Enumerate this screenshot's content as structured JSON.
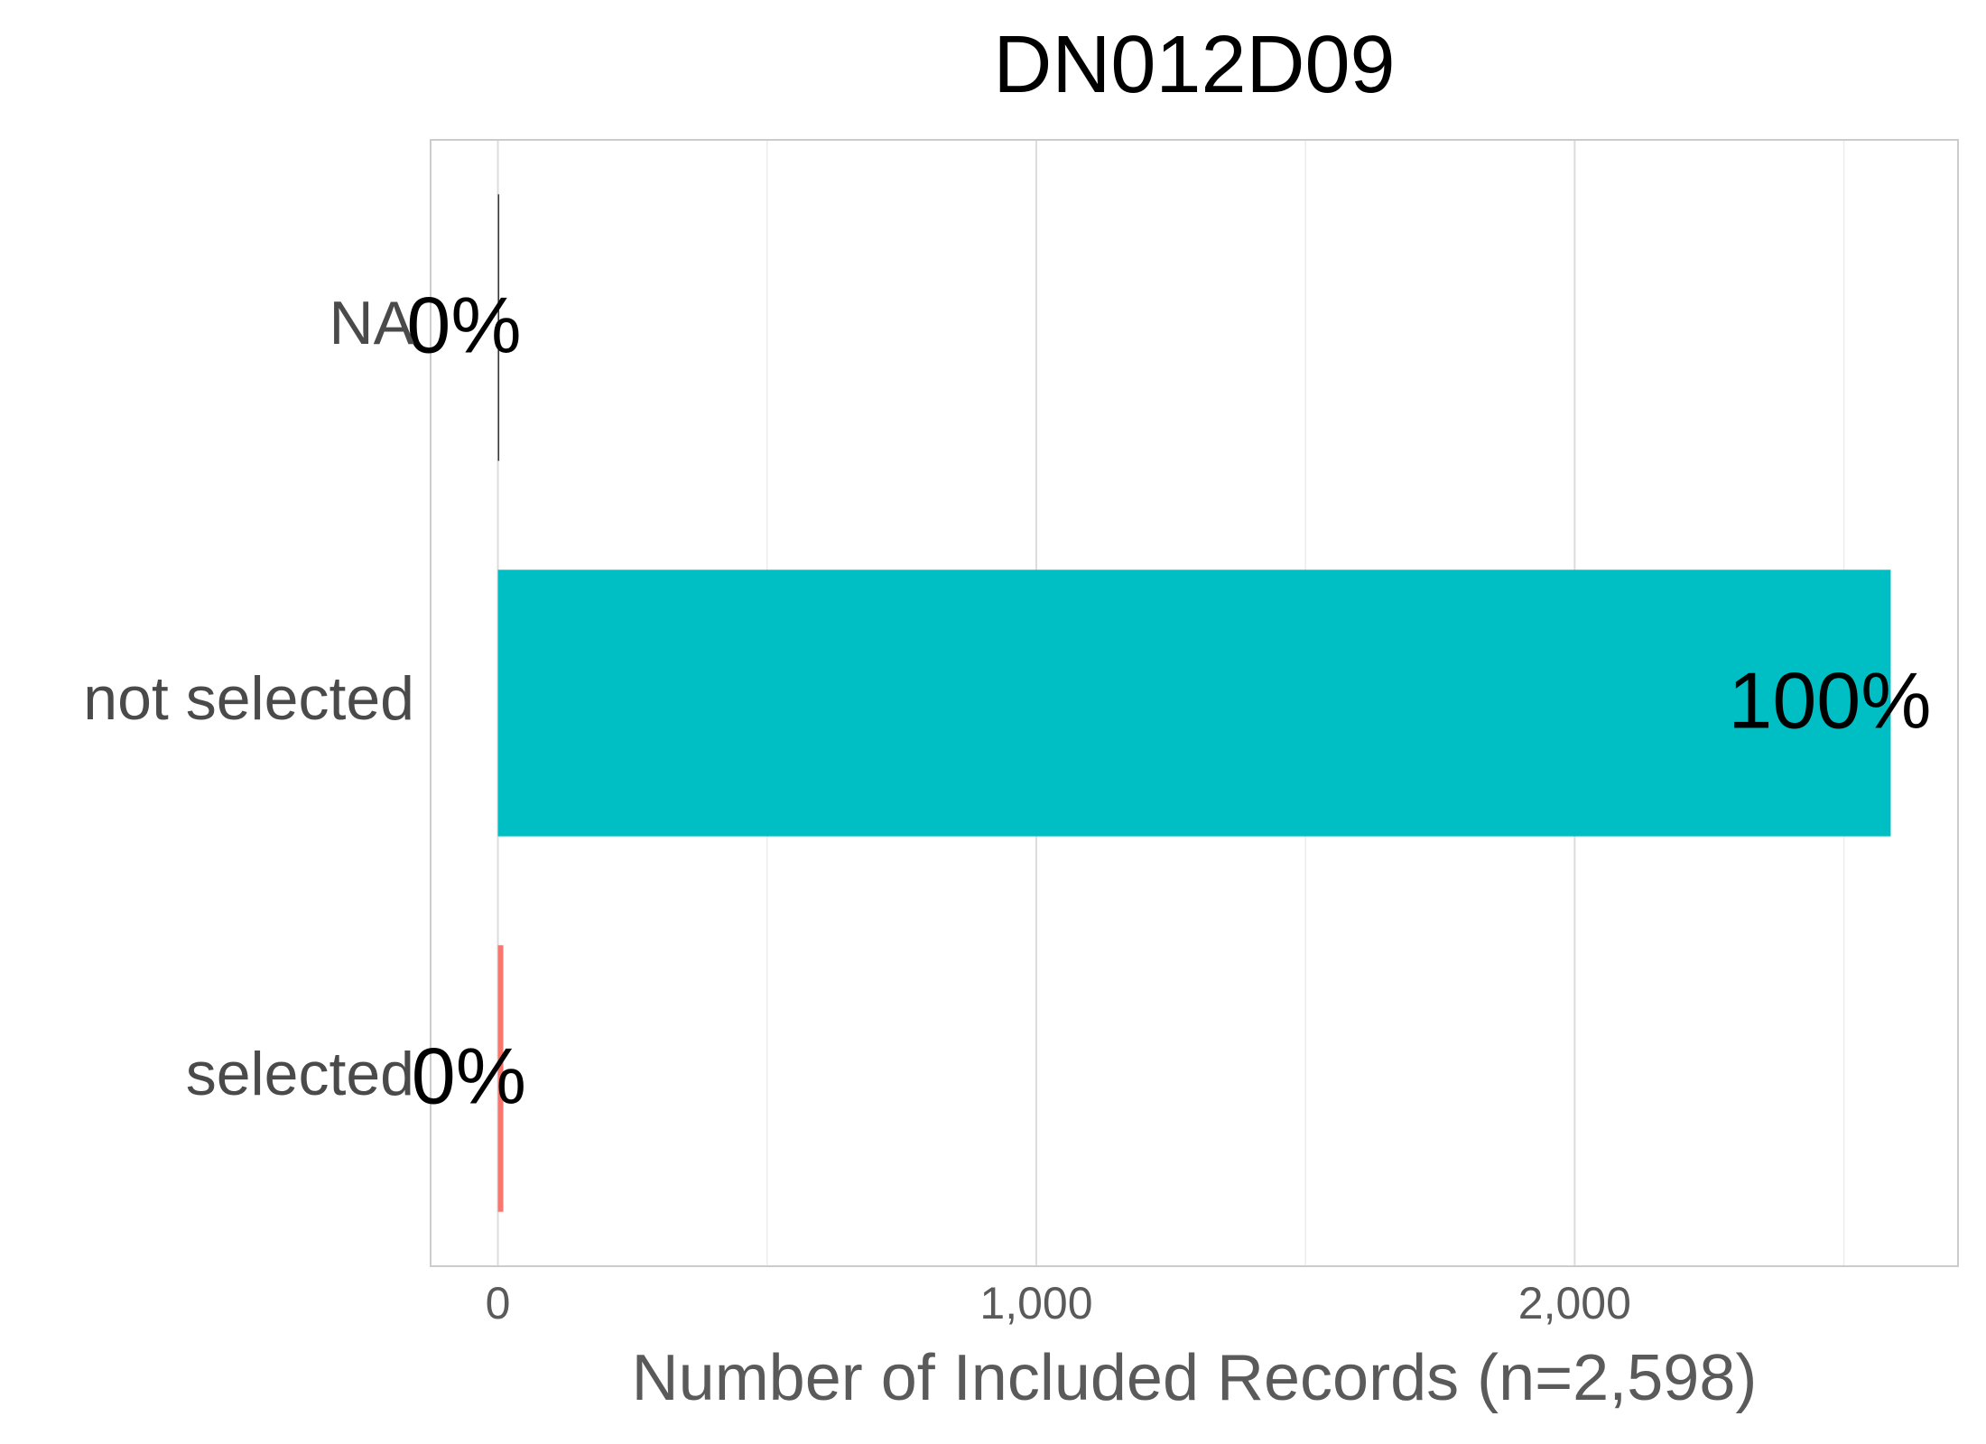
{
  "chart_data": {
    "type": "hbar",
    "title": "DN012D09",
    "categories": [
      "NA",
      "not selected",
      "selected"
    ],
    "values": [
      1,
      2587,
      10
    ],
    "value_labels": [
      "0%",
      "100%",
      "0%"
    ],
    "colors": [
      "#333333",
      "#00BFC4",
      "#F8766D"
    ],
    "x_label": "Number of Included Records (n=2,598)",
    "xlim": [
      -125,
      2712
    ],
    "xticks": [
      0,
      {
        "value": 1000,
        "label": "1,000"
      },
      {
        "value": 2000,
        "label": "2,000"
      }
    ],
    "minor_xticks": [
      500,
      1500,
      2500
    ],
    "grid": true
  }
}
